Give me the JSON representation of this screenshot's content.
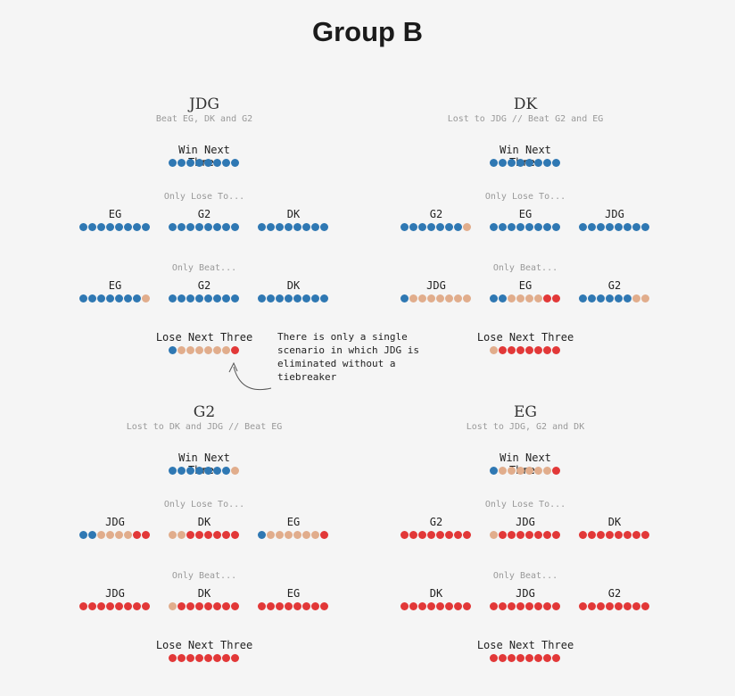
{
  "title": "Group B",
  "note": "There is only a single scenario in which JDG is eliminated without a tiebreaker",
  "legend_colors": {
    "win": "#2f78b3",
    "mixed": "#e1ad8c",
    "loss": "#e23838"
  },
  "chart_data": {
    "type": "dot-matrix",
    "unit": "8 outcome scenarios per row; W = advances, M = tiebreaker, L = eliminated",
    "panels": [
      {
        "team": "JDG",
        "subtitle": "Beat EG, DK and G2",
        "win_next_three": {
          "label": "Win Next Three",
          "dots": "WWWWWWWW"
        },
        "only_lose_to": {
          "title": "Only Lose To...",
          "rows": [
            {
              "label": "EG",
              "dots": "WWWWWWWW"
            },
            {
              "label": "G2",
              "dots": "WWWWWWWW"
            },
            {
              "label": "DK",
              "dots": "WWWWWWWW"
            }
          ]
        },
        "only_beat": {
          "title": "Only Beat...",
          "rows": [
            {
              "label": "EG",
              "dots": "WWWWWWWM"
            },
            {
              "label": "G2",
              "dots": "WWWWWWWW"
            },
            {
              "label": "DK",
              "dots": "WWWWWWWW"
            }
          ]
        },
        "lose_next_three": {
          "label": "Lose Next Three",
          "dots": "WMMMMMML"
        }
      },
      {
        "team": "DK",
        "subtitle": "Lost to JDG // Beat G2 and EG",
        "win_next_three": {
          "label": "Win Next Three",
          "dots": "WWWWWWWW"
        },
        "only_lose_to": {
          "title": "Only Lose To...",
          "rows": [
            {
              "label": "G2",
              "dots": "WWWWWWWM"
            },
            {
              "label": "EG",
              "dots": "WWWWWWWW"
            },
            {
              "label": "JDG",
              "dots": "WWWWWWWW"
            }
          ]
        },
        "only_beat": {
          "title": "Only Beat...",
          "rows": [
            {
              "label": "JDG",
              "dots": "WMMMMMMM"
            },
            {
              "label": "EG",
              "dots": "WWMMMMLL"
            },
            {
              "label": "G2",
              "dots": "WWWWWWMM"
            }
          ]
        },
        "lose_next_three": {
          "label": "Lose Next Three",
          "dots": "MLLLLLLL"
        }
      },
      {
        "team": "G2",
        "subtitle": "Lost to DK and JDG // Beat EG",
        "win_next_three": {
          "label": "Win Next Three",
          "dots": "WWWWWWWM"
        },
        "only_lose_to": {
          "title": "Only Lose To...",
          "rows": [
            {
              "label": "JDG",
              "dots": "WWMMMMLL"
            },
            {
              "label": "DK",
              "dots": "MMLLLLLL"
            },
            {
              "label": "EG",
              "dots": "WMMMMMML"
            }
          ]
        },
        "only_beat": {
          "title": "Only Beat...",
          "rows": [
            {
              "label": "JDG",
              "dots": "LLLLLLLL"
            },
            {
              "label": "DK",
              "dots": "MLLLLLLL"
            },
            {
              "label": "EG",
              "dots": "LLLLLLLL"
            }
          ]
        },
        "lose_next_three": {
          "label": "Lose Next Three",
          "dots": "LLLLLLLL"
        }
      },
      {
        "team": "EG",
        "subtitle": "Lost to JDG, G2 and DK",
        "win_next_three": {
          "label": "Win Next Three",
          "dots": "WMMMMMML"
        },
        "only_lose_to": {
          "title": "Only Lose To...",
          "rows": [
            {
              "label": "G2",
              "dots": "LLLLLLLL"
            },
            {
              "label": "JDG",
              "dots": "MLLLLLLL"
            },
            {
              "label": "DK",
              "dots": "LLLLLLLL"
            }
          ]
        },
        "only_beat": {
          "title": "Only Beat...",
          "rows": [
            {
              "label": "DK",
              "dots": "LLLLLLLL"
            },
            {
              "label": "JDG",
              "dots": "LLLLLLLL"
            },
            {
              "label": "G2",
              "dots": "LLLLLLLL"
            }
          ]
        },
        "lose_next_three": {
          "label": "Lose Next Three",
          "dots": "LLLLLLLL"
        }
      }
    ]
  }
}
